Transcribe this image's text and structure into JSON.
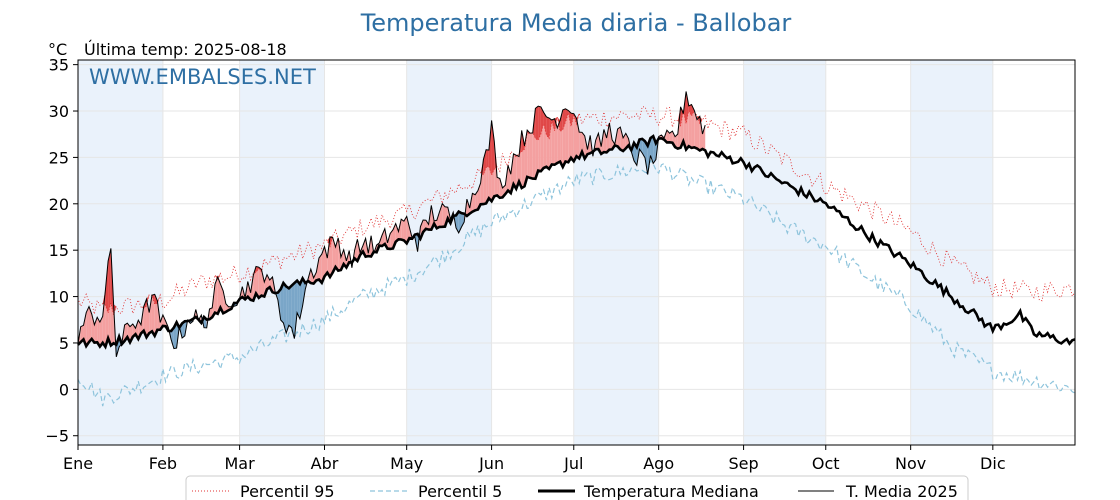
{
  "chart_data": {
    "type": "line",
    "title": "Temperatura Media diaria - Ballobar",
    "subtitle_unit": "°C",
    "subtitle_text": "Última temp: 2025-08-18",
    "watermark": "WWW.EMBALSES.NET",
    "ylim": [
      -6,
      35.5
    ],
    "y_ticks": [
      -5,
      0,
      5,
      10,
      15,
      20,
      25,
      30,
      35
    ],
    "x_range_day": [
      1,
      365
    ],
    "month_labels": [
      "Ene",
      "Feb",
      "Mar",
      "Abr",
      "May",
      "Jun",
      "Jul",
      "Ago",
      "Sep",
      "Oct",
      "Nov",
      "Dic"
    ],
    "month_start_days": [
      1,
      32,
      60,
      91,
      121,
      152,
      182,
      213,
      244,
      274,
      305,
      335
    ],
    "colors": {
      "p95": "#e03030",
      "p5": "#8ec4dc",
      "median": "#000000",
      "current": "#000000",
      "above_fill": "#f4a0a0",
      "above_strong": "#e04848",
      "below_fill": "#7aa6c8",
      "below_strong": "#27598a",
      "band": "#eaf2fb",
      "title": "#2e6fa3"
    },
    "series": [
      {
        "name": "Percentil 95",
        "style": "dotted-red",
        "days": [
          1,
          10,
          20,
          32,
          45,
          60,
          75,
          91,
          105,
          121,
          135,
          152,
          165,
          182,
          200,
          213,
          225,
          244,
          260,
          274,
          290,
          305,
          320,
          335,
          350,
          365
        ],
        "values": [
          9.5,
          8.5,
          9,
          9.5,
          11.5,
          12.5,
          14,
          15.5,
          17.5,
          19,
          21,
          23.5,
          27,
          29,
          29.5,
          29.5,
          29,
          27.5,
          24.5,
          22,
          19.5,
          17,
          13.5,
          11,
          10.5,
          11
        ]
      },
      {
        "name": "Percentil 5",
        "style": "dashed-lightblue",
        "days": [
          1,
          10,
          20,
          32,
          45,
          60,
          75,
          91,
          105,
          121,
          135,
          152,
          165,
          182,
          200,
          213,
          225,
          244,
          260,
          274,
          290,
          305,
          320,
          335,
          350,
          365
        ],
        "values": [
          1.5,
          -1,
          0,
          1.5,
          2.5,
          3.5,
          5.5,
          7.5,
          10,
          12,
          14.5,
          18,
          20,
          22.5,
          23.5,
          24,
          22.5,
          20.5,
          17.5,
          15.5,
          12,
          9,
          4.5,
          2,
          1,
          0
        ]
      },
      {
        "name": "Temperatura Mediana",
        "style": "thick-black",
        "days": [
          1,
          10,
          20,
          32,
          45,
          60,
          75,
          91,
          105,
          121,
          135,
          152,
          165,
          182,
          200,
          213,
          225,
          244,
          260,
          274,
          290,
          305,
          320,
          335,
          345,
          350,
          365
        ],
        "values": [
          5,
          5,
          5.5,
          6.5,
          7.5,
          9.5,
          11,
          12,
          14.5,
          16,
          18,
          20.5,
          22.5,
          25,
          26,
          27,
          26,
          24.5,
          22,
          20,
          16.5,
          13.5,
          10,
          6.5,
          8,
          6,
          5
        ]
      },
      {
        "name": "T. Media 2025",
        "style": "thin-black",
        "days": [
          1,
          5,
          10,
          13,
          15,
          20,
          25,
          28,
          32,
          37,
          42,
          47,
          52,
          56,
          60,
          65,
          70,
          75,
          80,
          85,
          91,
          96,
          100,
          106,
          110,
          115,
          121,
          125,
          130,
          135,
          140,
          145,
          150,
          152,
          155,
          160,
          165,
          170,
          175,
          180,
          182,
          186,
          190,
          195,
          200,
          205,
          210,
          213,
          217,
          220,
          223,
          228,
          230
        ],
        "values": [
          6,
          8,
          8,
          15,
          4,
          7,
          8,
          10,
          7,
          5,
          8,
          7,
          11,
          10,
          10,
          12,
          13,
          8,
          6,
          12,
          15,
          16,
          14,
          16,
          15,
          17,
          18,
          16,
          19,
          19,
          18,
          21,
          25,
          28,
          22,
          25,
          28,
          30,
          29,
          31,
          30,
          27,
          26,
          28,
          27,
          25,
          24,
          26,
          27,
          28,
          32,
          29,
          28
        ]
      }
    ],
    "legend": {
      "position": "bottom-center",
      "entries": [
        "Percentil 95",
        "Percentil 5",
        "Temperatura Mediana",
        "T. Media 2025"
      ]
    }
  }
}
